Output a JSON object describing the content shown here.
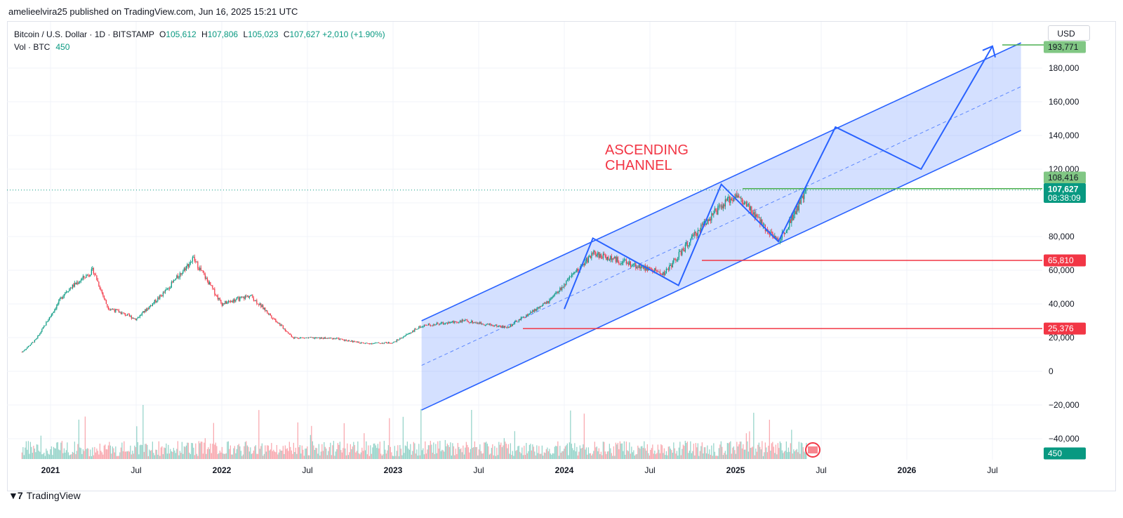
{
  "caption": "amelieelvira25 published on TradingView.com, Jun 16, 2025 15:21 UTC",
  "legend": {
    "symbol": "Bitcoin / U.S. Dollar · 1D · BITSTAMP",
    "open_label": "O",
    "open": "105,612",
    "high_label": "H",
    "high": "107,806",
    "low_label": "L",
    "low": "105,023",
    "close_label": "C",
    "close": "107,627",
    "change": "+2,010 (+1.90%)",
    "vol_label": "Vol · BTC",
    "vol": "450"
  },
  "currency_button": "USD",
  "footer_brand": "TradingView",
  "colors": {
    "up": "#089981",
    "down": "#f23645",
    "channel": "#2962ff",
    "channel_fill": "#2962ff",
    "support": "#f23645",
    "resistance": "#4caf50"
  },
  "chart_data": {
    "type": "candlestick",
    "title": "",
    "x_axis_labels": [
      "2021",
      "Jul",
      "2022",
      "Jul",
      "2023",
      "Jul",
      "2024",
      "Jul",
      "2025",
      "Jul",
      "2026",
      "Jul"
    ],
    "x_axis_years": [
      "2021",
      "2022",
      "2023",
      "2024",
      "2025",
      "2026"
    ],
    "y_axis_labels": [
      "−40,000",
      "−20,000",
      "0",
      "20,000",
      "40,000",
      "60,000",
      "80,000",
      "120,000",
      "140,000",
      "160,000",
      "180,000"
    ],
    "y_axis_values": [
      -40000,
      -20000,
      0,
      20000,
      40000,
      60000,
      80000,
      120000,
      140000,
      160000,
      180000
    ],
    "ylim": [
      -50000,
      200000
    ],
    "price_path": [
      {
        "date": "2020-11",
        "price": 11500
      },
      {
        "date": "2020-12",
        "price": 19000
      },
      {
        "date": "2021-01",
        "price": 33000
      },
      {
        "date": "2021-02",
        "price": 47000
      },
      {
        "date": "2021-04",
        "price": 60000
      },
      {
        "date": "2021-05",
        "price": 38000
      },
      {
        "date": "2021-07",
        "price": 31000
      },
      {
        "date": "2021-09",
        "price": 47000
      },
      {
        "date": "2021-11",
        "price": 67000
      },
      {
        "date": "2022-01",
        "price": 40000
      },
      {
        "date": "2022-03",
        "price": 45000
      },
      {
        "date": "2022-06",
        "price": 20000
      },
      {
        "date": "2022-09",
        "price": 19500
      },
      {
        "date": "2022-11",
        "price": 16500
      },
      {
        "date": "2023-01",
        "price": 17000
      },
      {
        "date": "2023-03",
        "price": 27000
      },
      {
        "date": "2023-06",
        "price": 30000
      },
      {
        "date": "2023-09",
        "price": 26000
      },
      {
        "date": "2023-12",
        "price": 42000
      },
      {
        "date": "2024-03",
        "price": 70000
      },
      {
        "date": "2024-08",
        "price": 58000
      },
      {
        "date": "2024-11",
        "price": 90000
      },
      {
        "date": "2025-01",
        "price": 105000
      },
      {
        "date": "2025-04",
        "price": 77000
      },
      {
        "date": "2025-06",
        "price": 107627
      }
    ],
    "drawings": {
      "channel_label": "ASCENDING\nCHANNEL",
      "channel_upper": [
        {
          "date": "2023-03",
          "price": 30000
        },
        {
          "date": "2026-09",
          "price": 195000
        }
      ],
      "channel_lower": [
        {
          "date": "2023-03",
          "price": -23000
        },
        {
          "date": "2026-09",
          "price": 143000
        }
      ],
      "channel_mid": [
        {
          "date": "2023-03",
          "price": 3500
        },
        {
          "date": "2026-09",
          "price": 169000
        }
      ],
      "zigzag_path": [
        {
          "date": "2024-01",
          "price": 37000
        },
        {
          "date": "2024-03",
          "price": 79000
        },
        {
          "date": "2024-09",
          "price": 51000
        },
        {
          "date": "2024-12",
          "price": 111000
        },
        {
          "date": "2025-04",
          "price": 77000
        },
        {
          "date": "2025-08",
          "price": 145000
        },
        {
          "date": "2026-02",
          "price": 120000
        },
        {
          "date": "2026-07",
          "price": 193000
        }
      ],
      "support_levels": [
        65810,
        25376
      ],
      "resistance_level": 108416,
      "target_level": 193771
    },
    "price_badges": [
      {
        "text": "193,771",
        "value": 193771,
        "kind": "target"
      },
      {
        "text": "108,416",
        "value": 108416,
        "kind": "resistance"
      },
      {
        "text": "107,627",
        "value": 107627,
        "kind": "last",
        "sub": "08:38:09"
      },
      {
        "text": "65,810",
        "value": 65810,
        "kind": "support"
      },
      {
        "text": "25,376",
        "value": 25376,
        "kind": "support"
      },
      {
        "text": "450",
        "value": 450,
        "kind": "volume"
      }
    ],
    "volume_series_name": "Vol · BTC"
  }
}
